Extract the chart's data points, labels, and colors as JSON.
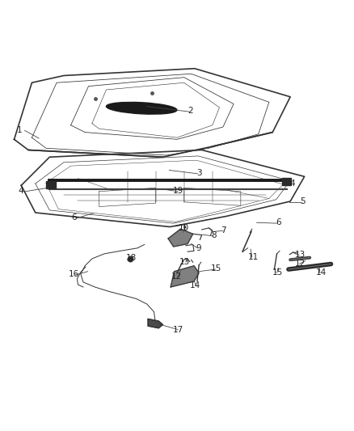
{
  "background_color": "#ffffff",
  "figsize": [
    4.38,
    5.33
  ],
  "dpi": 100,
  "line_color": "#333333",
  "label_color": "#222222",
  "label_fontsize": 7.5
}
